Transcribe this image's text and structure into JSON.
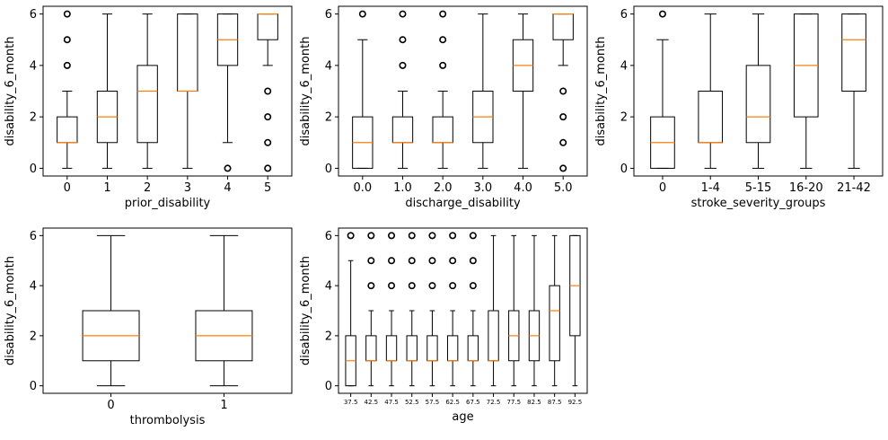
{
  "chart_data": [
    {
      "type": "box",
      "xlabel": "prior_disability",
      "ylabel": "disability_6_month",
      "ylim": [
        -0.3,
        6.3
      ],
      "yticks": [
        0,
        2,
        4,
        6
      ],
      "categories": [
        "0",
        "1",
        "2",
        "3",
        "4",
        "5"
      ],
      "boxes": [
        {
          "whislo": 0,
          "q1": 1,
          "med": 1,
          "q3": 2,
          "whishi": 3,
          "fliers": [
            4,
            5,
            6
          ]
        },
        {
          "whislo": 0,
          "q1": 1,
          "med": 2,
          "q3": 3,
          "whishi": 6,
          "fliers": []
        },
        {
          "whislo": 0,
          "q1": 1,
          "med": 3,
          "q3": 4,
          "whishi": 6,
          "fliers": []
        },
        {
          "whislo": 0,
          "q1": 3,
          "med": 3,
          "q3": 6,
          "whishi": 6,
          "fliers": []
        },
        {
          "whislo": 1,
          "q1": 4,
          "med": 5,
          "q3": 6,
          "whishi": 6,
          "fliers": [
            0
          ]
        },
        {
          "whislo": 4,
          "q1": 5,
          "med": 6,
          "q3": 6,
          "whishi": 6,
          "fliers": [
            0,
            1,
            2,
            3
          ]
        }
      ]
    },
    {
      "type": "box",
      "xlabel": "discharge_disability",
      "ylabel": "disability_6_month",
      "ylim": [
        -0.3,
        6.3
      ],
      "yticks": [
        0,
        2,
        4,
        6
      ],
      "categories": [
        "0.0",
        "1.0",
        "2.0",
        "3.0",
        "4.0",
        "5.0"
      ],
      "boxes": [
        {
          "whislo": 0,
          "q1": 0,
          "med": 1,
          "q3": 2,
          "whishi": 5,
          "fliers": [
            6
          ]
        },
        {
          "whislo": 0,
          "q1": 1,
          "med": 1,
          "q3": 2,
          "whishi": 3,
          "fliers": [
            4,
            5,
            6
          ]
        },
        {
          "whislo": 0,
          "q1": 1,
          "med": 1,
          "q3": 2,
          "whishi": 3,
          "fliers": [
            4,
            5,
            6
          ]
        },
        {
          "whislo": 0,
          "q1": 1,
          "med": 2,
          "q3": 3,
          "whishi": 6,
          "fliers": []
        },
        {
          "whislo": 0,
          "q1": 3,
          "med": 4,
          "q3": 5,
          "whishi": 6,
          "fliers": []
        },
        {
          "whislo": 4,
          "q1": 5,
          "med": 6,
          "q3": 6,
          "whishi": 6,
          "fliers": [
            0,
            1,
            2,
            3
          ]
        }
      ]
    },
    {
      "type": "box",
      "xlabel": "stroke_severity_groups",
      "ylabel": "disability_6_month",
      "ylim": [
        -0.3,
        6.3
      ],
      "yticks": [
        0,
        2,
        4,
        6
      ],
      "categories": [
        "0",
        "1-4",
        "5-15",
        "16-20",
        "21-42"
      ],
      "boxes": [
        {
          "whislo": 0,
          "q1": 0,
          "med": 1,
          "q3": 2,
          "whishi": 5,
          "fliers": [
            6
          ]
        },
        {
          "whislo": 0,
          "q1": 1,
          "med": 1,
          "q3": 3,
          "whishi": 6,
          "fliers": []
        },
        {
          "whislo": 0,
          "q1": 1,
          "med": 2,
          "q3": 4,
          "whishi": 6,
          "fliers": []
        },
        {
          "whislo": 0,
          "q1": 2,
          "med": 4,
          "q3": 6,
          "whishi": 6,
          "fliers": []
        },
        {
          "whislo": 0,
          "q1": 3,
          "med": 5,
          "q3": 6,
          "whishi": 6,
          "fliers": []
        }
      ]
    },
    {
      "type": "box",
      "xlabel": "thrombolysis",
      "ylabel": "disability_6_month",
      "ylim": [
        -0.3,
        6.3
      ],
      "yticks": [
        0,
        2,
        4,
        6
      ],
      "categories": [
        "0",
        "1"
      ],
      "boxes": [
        {
          "whislo": 0,
          "q1": 1,
          "med": 2,
          "q3": 3,
          "whishi": 6,
          "fliers": []
        },
        {
          "whislo": 0,
          "q1": 1,
          "med": 2,
          "q3": 3,
          "whishi": 6,
          "fliers": []
        }
      ]
    },
    {
      "type": "box",
      "xlabel": "age",
      "ylabel": "disability_6_month",
      "ylim": [
        -0.3,
        6.3
      ],
      "yticks": [
        0,
        2,
        4,
        6
      ],
      "small_ticks": true,
      "categories": [
        "37.5",
        "42.5",
        "47.5",
        "52.5",
        "57.5",
        "62.5",
        "67.5",
        "72.5",
        "77.5",
        "82.5",
        "87.5",
        "92.5"
      ],
      "boxes": [
        {
          "whislo": 0,
          "q1": 0,
          "med": 1,
          "q3": 2,
          "whishi": 5,
          "fliers": [
            6
          ]
        },
        {
          "whislo": 0,
          "q1": 1,
          "med": 1,
          "q3": 2,
          "whishi": 3,
          "fliers": [
            4,
            5,
            6
          ]
        },
        {
          "whislo": 0,
          "q1": 1,
          "med": 1,
          "q3": 2,
          "whishi": 3,
          "fliers": [
            4,
            5,
            6
          ]
        },
        {
          "whislo": 0,
          "q1": 1,
          "med": 1,
          "q3": 2,
          "whishi": 3,
          "fliers": [
            4,
            5,
            6
          ]
        },
        {
          "whislo": 0,
          "q1": 1,
          "med": 1,
          "q3": 2,
          "whishi": 3,
          "fliers": [
            4,
            5,
            6
          ]
        },
        {
          "whislo": 0,
          "q1": 1,
          "med": 1,
          "q3": 2,
          "whishi": 3,
          "fliers": [
            4,
            5,
            6
          ]
        },
        {
          "whislo": 0,
          "q1": 1,
          "med": 1,
          "q3": 2,
          "whishi": 3,
          "fliers": [
            4,
            5,
            6
          ]
        },
        {
          "whislo": 0,
          "q1": 1,
          "med": 1,
          "q3": 3,
          "whishi": 6,
          "fliers": []
        },
        {
          "whislo": 0,
          "q1": 1,
          "med": 2,
          "q3": 3,
          "whishi": 6,
          "fliers": []
        },
        {
          "whislo": 0,
          "q1": 1,
          "med": 2,
          "q3": 3,
          "whishi": 6,
          "fliers": []
        },
        {
          "whislo": 0,
          "q1": 1,
          "med": 3,
          "q3": 4,
          "whishi": 6,
          "fliers": []
        },
        {
          "whislo": 0,
          "q1": 2,
          "med": 4,
          "q3": 6,
          "whishi": 6,
          "fliers": []
        }
      ]
    }
  ]
}
